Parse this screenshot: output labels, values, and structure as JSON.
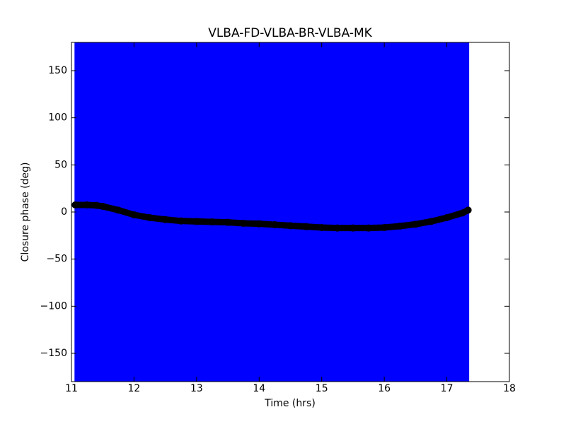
{
  "chart_data": {
    "type": "errorbar",
    "title": "VLBA-FD-VLBA-BR-VLBA-MK",
    "xlabel": "Time (hrs)",
    "ylabel": "Closure phase (deg)",
    "xlim": [
      11,
      18
    ],
    "xticks": [
      11,
      12,
      13,
      14,
      15,
      16,
      17,
      18
    ],
    "ylim": [
      -180,
      180
    ],
    "yticks": [
      {
        "value": -150,
        "label": "−150"
      },
      {
        "value": -100,
        "label": "−100"
      },
      {
        "value": -50,
        "label": "−50"
      },
      0,
      50,
      100,
      150
    ],
    "series": [
      {
        "color": "#000000",
        "error_color": "#0000ff",
        "x": [
          11.06,
          11.25,
          11.4,
          11.5,
          11.75,
          12.0,
          12.25,
          12.5,
          12.75,
          13.0,
          13.25,
          13.5,
          13.75,
          14.0,
          14.25,
          14.5,
          14.75,
          15.0,
          15.25,
          15.5,
          15.75,
          16.0,
          16.25,
          16.5,
          16.75,
          17.0,
          17.25,
          17.34
        ],
        "values": [
          7.5,
          7.5,
          7,
          6,
          2,
          -3,
          -6,
          -8,
          -9.5,
          -10,
          -10.5,
          -11,
          -12,
          -12.5,
          -13.5,
          -14.5,
          -15.5,
          -16.5,
          -17,
          -17,
          -17,
          -16.5,
          -15,
          -13,
          -10,
          -6,
          -1,
          2
        ],
        "errors": [
          200,
          200,
          200,
          200,
          200,
          200,
          200,
          200,
          200,
          200,
          200,
          200,
          200,
          200,
          200,
          200,
          200,
          200,
          200,
          200,
          200,
          200,
          200,
          200,
          200,
          200,
          200,
          200
        ]
      }
    ]
  }
}
